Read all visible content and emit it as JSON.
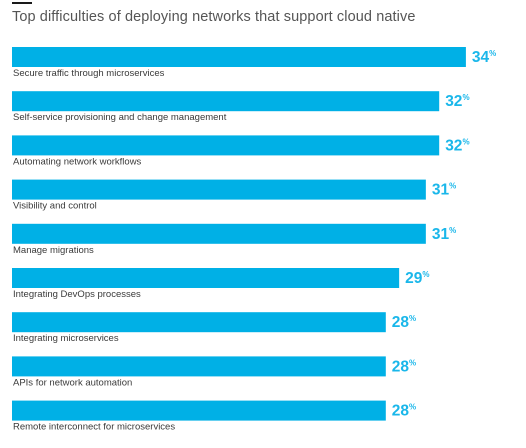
{
  "chart_data": {
    "type": "bar",
    "orientation": "horizontal",
    "title": "Top difficulties of deploying networks that support cloud native",
    "categories": [
      "Secure traffic through microservices",
      "Self-service provisioning and change management",
      "Automating network workflows",
      "Visibility and control",
      "Manage migrations",
      "Integrating DevOps processes",
      "Integrating microservices",
      "APIs for network automation",
      "Remote interconnect for microservices"
    ],
    "values": [
      34,
      32,
      32,
      31,
      31,
      29,
      28,
      28,
      28
    ],
    "value_unit": "%",
    "bar_color": "#00b0e6",
    "value_label_color": "#1ab7ea"
  }
}
